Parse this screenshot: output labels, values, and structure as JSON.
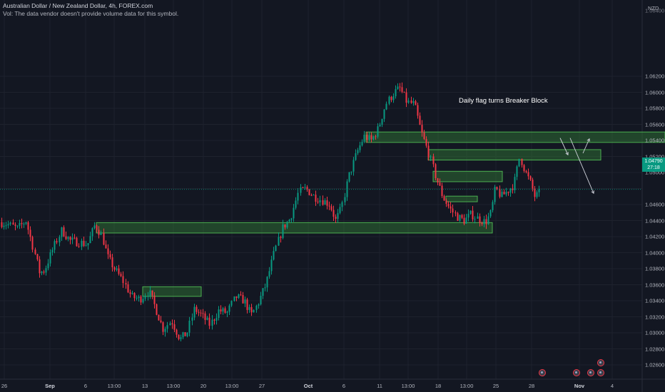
{
  "legend": {
    "symbol_line": "Australian Dollar / New Zealand Dollar, 4h, FOREX.com",
    "volume_line": "Vol: The data vendor doesn't provide volume data for this symbol."
  },
  "currency": "NZD",
  "price_axis": [
    "1.06200",
    "1.06000",
    "1.05800",
    "1.05600",
    "1.05400",
    "1.05200",
    "1.05000",
    "1.04600",
    "1.04400",
    "1.04200",
    "1.04000",
    "1.03800",
    "1.03600",
    "1.03400",
    "1.03200",
    "1.03000",
    "1.02800",
    "1.02600"
  ],
  "price_axis_partial": "1.06400",
  "date_axis": [
    {
      "label": "26",
      "bold": false
    },
    {
      "label": "Sep",
      "bold": true
    },
    {
      "label": "6",
      "bold": false
    },
    {
      "label": "13:00",
      "bold": false
    },
    {
      "label": "13",
      "bold": false
    },
    {
      "label": "13:00",
      "bold": false
    },
    {
      "label": "20",
      "bold": false
    },
    {
      "label": "13:00",
      "bold": false
    },
    {
      "label": "27",
      "bold": false
    },
    {
      "label": "Oct",
      "bold": true
    },
    {
      "label": "6",
      "bold": false
    },
    {
      "label": "11",
      "bold": false
    },
    {
      "label": "13:00",
      "bold": false
    },
    {
      "label": "18",
      "bold": false
    },
    {
      "label": "13:00",
      "bold": false
    },
    {
      "label": "25",
      "bold": false
    },
    {
      "label": "28",
      "bold": false
    },
    {
      "label": "Nov",
      "bold": true
    },
    {
      "label": "4",
      "bold": false
    }
  ],
  "last_price": {
    "value": "1.04790",
    "countdown": "27:18"
  },
  "annotation": "Daily flag turns Breaker Block",
  "colors": {
    "up": "#089981",
    "down": "#f23645",
    "zone_fill": "#2d6b33",
    "zone_border": "#4caf50",
    "background": "#131722"
  },
  "chart_data": {
    "type": "candlestick",
    "symbol": "AUD/NZD",
    "timeframe": "4h",
    "ylim": [
      1.0255,
      1.0655
    ],
    "path": [
      [
        0,
        1.0438
      ],
      [
        12,
        1.0435
      ],
      [
        24,
        1.043
      ],
      [
        36,
        1.044
      ],
      [
        48,
        1.04
      ],
      [
        55,
        1.0375
      ],
      [
        62,
        1.0378
      ],
      [
        74,
        1.0405
      ],
      [
        86,
        1.0428
      ],
      [
        98,
        1.0415
      ],
      [
        110,
        1.0413
      ],
      [
        122,
        1.041
      ],
      [
        133,
        1.0435
      ],
      [
        143,
        1.042
      ],
      [
        150,
        1.0395
      ],
      [
        160,
        1.038
      ],
      [
        172,
        1.0365
      ],
      [
        184,
        1.0345
      ],
      [
        196,
        1.0342
      ],
      [
        208,
        1.0352
      ],
      [
        218,
        1.033
      ],
      [
        228,
        1.0305
      ],
      [
        240,
        1.0315
      ],
      [
        252,
        1.0292
      ],
      [
        262,
        1.03
      ],
      [
        272,
        1.033
      ],
      [
        282,
        1.0322
      ],
      [
        294,
        1.031
      ],
      [
        306,
        1.0328
      ],
      [
        318,
        1.0325
      ],
      [
        330,
        1.0345
      ],
      [
        342,
        1.034
      ],
      [
        352,
        1.0322
      ],
      [
        360,
        1.0335
      ],
      [
        372,
        1.036
      ],
      [
        384,
        1.04
      ],
      [
        396,
        1.0432
      ],
      [
        406,
        1.0442
      ],
      [
        418,
        1.0475
      ],
      [
        428,
        1.048
      ],
      [
        440,
        1.047
      ],
      [
        452,
        1.0465
      ],
      [
        462,
        1.046
      ],
      [
        470,
        1.044
      ],
      [
        478,
        1.0455
      ],
      [
        488,
        1.0495
      ],
      [
        500,
        1.0525
      ],
      [
        510,
        1.0545
      ],
      [
        520,
        1.054
      ],
      [
        530,
        1.0555
      ],
      [
        540,
        1.0585
      ],
      [
        552,
        1.06
      ],
      [
        560,
        1.0605
      ],
      [
        570,
        1.0588
      ],
      [
        580,
        1.0585
      ],
      [
        590,
        1.055
      ],
      [
        600,
        1.0525
      ],
      [
        610,
        1.0495
      ],
      [
        620,
        1.047
      ],
      [
        630,
        1.0455
      ],
      [
        640,
        1.0445
      ],
      [
        650,
        1.044
      ],
      [
        660,
        1.0448
      ],
      [
        670,
        1.0442
      ],
      [
        680,
        1.0438
      ],
      [
        688,
        1.045
      ],
      [
        694,
        1.048
      ],
      [
        702,
        1.047
      ],
      [
        712,
        1.0478
      ],
      [
        720,
        1.0485
      ],
      [
        728,
        1.052
      ],
      [
        736,
        1.05
      ],
      [
        744,
        1.0485
      ],
      [
        750,
        1.0468
      ],
      [
        757,
        1.0479
      ]
    ],
    "zones": [
      {
        "x1": 135,
        "x2": 690,
        "y_top": 1.04375,
        "y_bottom": 1.04245
      },
      {
        "x1": 200,
        "x2": 282,
        "y_top": 1.03575,
        "y_bottom": 1.03455
      },
      {
        "x1": 513,
        "x2": 932,
        "y_top": 1.05505,
        "y_bottom": 1.05375
      },
      {
        "x1": 600,
        "x2": 842,
        "y_top": 1.05285,
        "y_bottom": 1.05155
      },
      {
        "x1": 607,
        "x2": 704,
        "y_top": 1.05015,
        "y_bottom": 1.04885
      },
      {
        "x1": 625,
        "x2": 669,
        "y_top": 1.04705,
        "y_bottom": 1.04635
      }
    ],
    "arrows": [
      {
        "from": [
          785,
          1.0543
        ],
        "to": [
          796,
          1.0522
        ]
      },
      {
        "from": [
          817,
          1.0524
        ],
        "to": [
          826,
          1.0542
        ]
      },
      {
        "from": [
          799,
          1.0543
        ],
        "to": [
          832,
          1.0474
        ]
      }
    ]
  },
  "event_icons": [
    {
      "x": 760,
      "y": 523
    },
    {
      "x": 808,
      "y": 523
    },
    {
      "x": 828,
      "y": 523
    },
    {
      "x": 842,
      "y": 523
    },
    {
      "x": 842,
      "y": 509
    }
  ]
}
